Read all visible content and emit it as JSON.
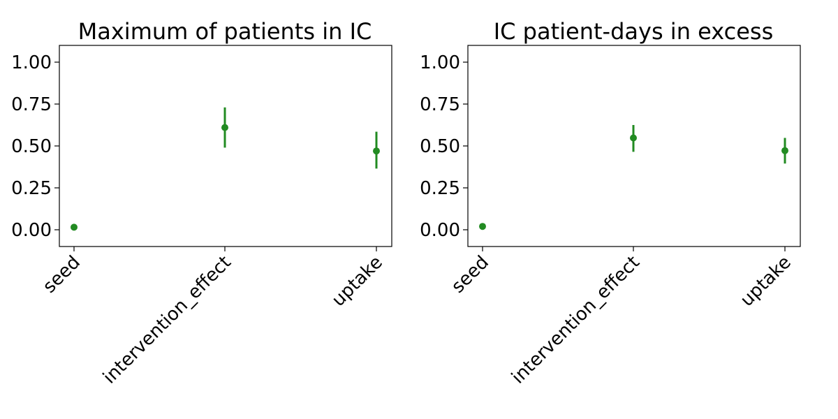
{
  "chart_data": [
    {
      "type": "scatter",
      "title": "Maximum of patients in IC",
      "xlabel": "",
      "ylabel": "",
      "categories": [
        "seed",
        "intervention_effect",
        "uptake"
      ],
      "values": [
        0.015,
        0.61,
        0.47
      ],
      "error_low": [
        0.015,
        0.49,
        0.365
      ],
      "error_high": [
        0.015,
        0.73,
        0.585
      ],
      "yticks": [
        "0.00",
        "0.25",
        "0.50",
        "0.75",
        "1.00"
      ],
      "ylim": [
        -0.1,
        1.1
      ],
      "grid": false,
      "color": "#228b22"
    },
    {
      "type": "scatter",
      "title": "IC patient-days in excess",
      "xlabel": "",
      "ylabel": "",
      "categories": [
        "seed",
        "intervention_effect",
        "uptake"
      ],
      "values": [
        0.02,
        0.548,
        0.472
      ],
      "error_low": [
        0.02,
        0.465,
        0.395
      ],
      "error_high": [
        0.02,
        0.625,
        0.548
      ],
      "yticks": [
        "0.00",
        "0.25",
        "0.50",
        "0.75",
        "1.00"
      ],
      "ylim": [
        -0.1,
        1.1
      ],
      "grid": false,
      "color": "#228b22"
    }
  ]
}
